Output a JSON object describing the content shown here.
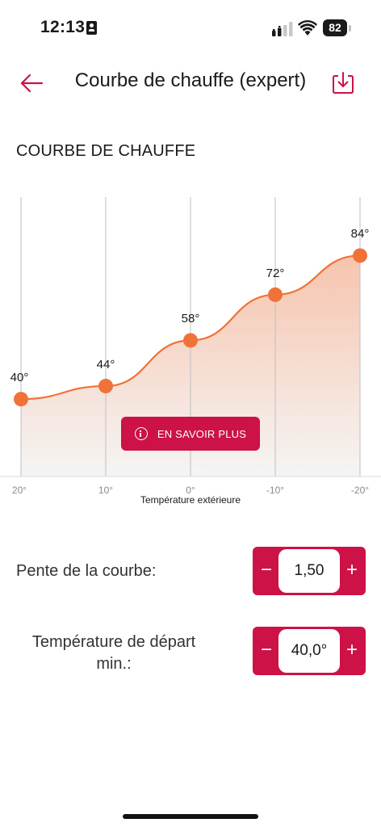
{
  "status_bar": {
    "time": "12:13",
    "battery": "82"
  },
  "header": {
    "title": "Courbe de chauffe (expert)",
    "back_icon": "arrow-left-icon",
    "download_icon": "download-tray-icon"
  },
  "section": {
    "title": "COURBE DE CHAUFFE"
  },
  "colors": {
    "accent": "#cc1246",
    "curve": "#f07238",
    "fill_top": "#f7c4ad",
    "fill_bottom": "#f5f5f5",
    "grid": "#bfbfbf"
  },
  "chart_data": {
    "type": "area",
    "x": [
      "20°",
      "10°",
      "0°",
      "-10°",
      "-20°"
    ],
    "values": [
      40,
      44,
      58,
      72,
      84
    ],
    "point_labels": [
      "40°",
      "44°",
      "58°",
      "72°",
      "84°"
    ],
    "xlabel": "Température extérieure",
    "ylabel": "",
    "grid": true
  },
  "chart": {
    "learn_more_label": "EN SAVOIR PLUS",
    "info_icon": "info-circle-icon"
  },
  "settings": {
    "slope": {
      "label": "Pente de la courbe:",
      "value": "1,50",
      "minus": "−",
      "plus": "+"
    },
    "min_flow_temp": {
      "label_line1": "Température de départ",
      "label_line2": "min.:",
      "value": "40,0°",
      "minus": "−",
      "plus": "+"
    }
  }
}
